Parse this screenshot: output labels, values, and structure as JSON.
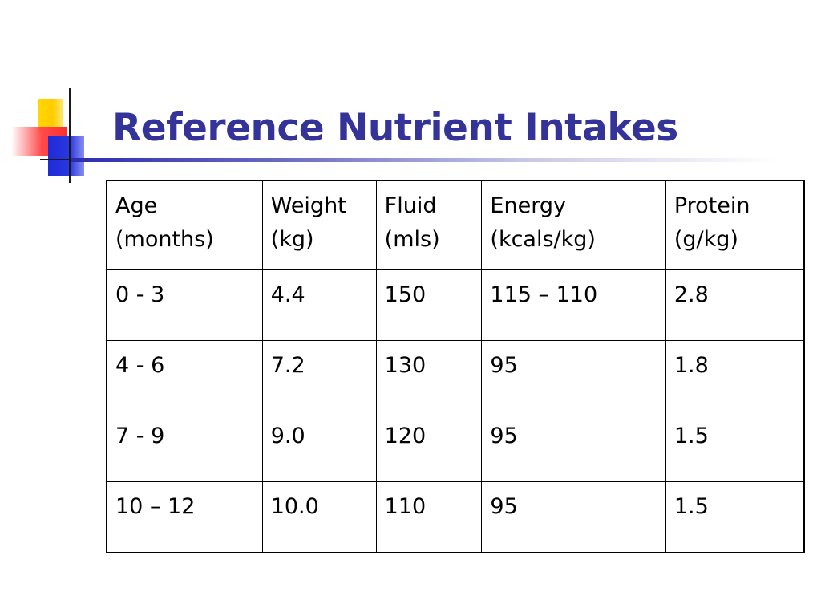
{
  "slide": {
    "title": "Reference Nutrient Intakes"
  },
  "table": {
    "headers": [
      [
        "Age",
        "(months)"
      ],
      [
        "Weight",
        "(kg)"
      ],
      [
        "Fluid",
        "(mls)"
      ],
      [
        "Energy",
        "(kcals/kg)"
      ],
      [
        "Protein",
        "(g/kg)"
      ]
    ],
    "rows": [
      [
        "0 - 3",
        "4.4",
        "150",
        "115 – 110",
        "2.8"
      ],
      [
        "4 - 6",
        "7.2",
        "130",
        "95",
        "1.8"
      ],
      [
        "7 - 9",
        "9.0",
        "120",
        "95",
        "1.5"
      ],
      [
        "10 – 12",
        "10.0",
        "110",
        "95",
        "1.5"
      ]
    ]
  },
  "colors": {
    "title": "#333399",
    "logo_yellow": "#ffcc00",
    "logo_red": "#ff3333",
    "logo_blue": "#2233dd"
  }
}
